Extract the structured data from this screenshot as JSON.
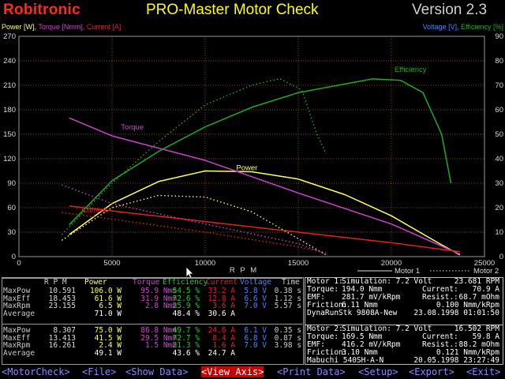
{
  "header": {
    "brand": "Robitronic",
    "title": "PRO-Master Motor Check",
    "version": "Version 2.3"
  },
  "legend_left": {
    "power": "Power [W]",
    "torque": "Torque [Nmm]",
    "current": "Current [A]"
  },
  "legend_right": {
    "voltage": "Voltage [V]",
    "efficiency": "Efficiency [%]"
  },
  "colors": {
    "power": "#ffff66",
    "torque": "#cc44cc",
    "current": "#dd2222",
    "efficiency": "#22aa22",
    "voltage": "#4488ff",
    "grid": "#b06000"
  },
  "chart_data": {
    "type": "line",
    "xlabel": "R P M",
    "xlim": [
      0,
      25000
    ],
    "ylim_left": [
      0,
      270
    ],
    "ylim_right": [
      0,
      90
    ],
    "x_ticks": [
      "0",
      "5000",
      "10000",
      "15000",
      "20000",
      "25000"
    ],
    "y_ticks_left": [
      "0",
      "30",
      "60",
      "90",
      "120",
      "150",
      "180",
      "210",
      "240",
      "270"
    ],
    "y_ticks_right": [
      "0",
      "10",
      "20",
      "30",
      "40",
      "50",
      "60",
      "70",
      "80",
      "90"
    ],
    "curve_labels": {
      "efficiency": "Efficiency",
      "torque": "Torque",
      "power": "Power",
      "current": "Current"
    },
    "legend": {
      "motor1": "Motor 1",
      "motor2": "Motor 2"
    },
    "series": [
      {
        "name": "Power",
        "motor": 1,
        "axis": "left",
        "x": [
          2700,
          5000,
          7500,
          10000,
          12500,
          15000,
          17500,
          20000,
          22500,
          23681
        ],
        "y": [
          27,
          65,
          92,
          105,
          104,
          95,
          76,
          50,
          17,
          2
        ]
      },
      {
        "name": "Torque",
        "motor": 1,
        "axis": "left",
        "x": [
          2700,
          5000,
          10000,
          15000,
          20000,
          23681
        ],
        "y": [
          170,
          148,
          118,
          78,
          40,
          3
        ]
      },
      {
        "name": "Current",
        "motor": 1,
        "axis": "left",
        "x": [
          2700,
          5000,
          10000,
          15000,
          20000,
          23681
        ],
        "y": [
          62,
          56,
          43,
          30,
          17,
          6
        ]
      },
      {
        "name": "Efficiency",
        "motor": 1,
        "axis": "right",
        "x": [
          2700,
          5000,
          7500,
          10000,
          12500,
          15000,
          17500,
          19000,
          20500,
          21700,
          22700,
          23200
        ],
        "y": [
          13,
          31,
          43,
          53,
          61,
          67,
          70.5,
          72.6,
          72,
          67,
          50,
          30
        ]
      },
      {
        "name": "Power",
        "motor": 2,
        "axis": "left",
        "x": [
          2300,
          5000,
          7500,
          10000,
          12500,
          15000,
          16502
        ],
        "y": [
          20,
          60,
          75,
          73,
          55,
          22,
          2
        ]
      },
      {
        "name": "Torque",
        "motor": 2,
        "axis": "left",
        "x": [
          2300,
          5000,
          10000,
          15000,
          16502
        ],
        "y": [
          88,
          65,
          40,
          16,
          3
        ]
      },
      {
        "name": "Current",
        "motor": 2,
        "axis": "left",
        "x": [
          2300,
          5000,
          10000,
          15000,
          16502
        ],
        "y": [
          54,
          46,
          30,
          12,
          5
        ]
      },
      {
        "name": "Efficiency",
        "motor": 2,
        "axis": "right",
        "x": [
          2300,
          5000,
          7500,
          10000,
          12500,
          14000,
          15200,
          16000,
          16502
        ],
        "y": [
          9,
          30,
          47,
          62,
          70,
          72.7,
          68,
          50,
          42
        ]
      }
    ]
  },
  "table": {
    "columns": [
      "R P M",
      "Power",
      "Torque",
      "Efficiency",
      "Current",
      "Voltage",
      "Time"
    ],
    "motor1": [
      [
        "MaxPow",
        "10.591",
        "106.0 W",
        "95.9 Nmm",
        "54.5 %",
        "33.2 A",
        "5.8 V",
        "0.38 s"
      ],
      [
        "MaxEff",
        "18.453",
        "61.6 W",
        "31.9 Nmm",
        "72.6 %",
        "12.8 A",
        "6.6 V",
        "1.12 s"
      ],
      [
        "MaxRpm",
        "23.155",
        "6.5 W",
        "2.8 Nmm",
        "25.9 %",
        "3.6 A",
        "7.0 V",
        "5.57 s"
      ],
      [
        "Average",
        "",
        "71.0 W",
        "",
        "48.4 %",
        "30.6 A",
        "",
        ""
      ]
    ],
    "motor2": [
      [
        "MaxPow",
        "8.307",
        "75.0 W",
        "86.8 Nmm",
        "49.7 %",
        "24.6 A",
        "6.1 V",
        "0.35 s"
      ],
      [
        "MaxEff",
        "13.413",
        "41.5 W",
        "29.5 Nmm",
        "72.7 %",
        "8.4 A",
        "6.8 V",
        "0.87 s"
      ],
      [
        "MaxRpm",
        "16.261",
        "2.4 W",
        "1.5 Nmm",
        "21.3 %",
        "1.6 A",
        "7.0 V",
        "3.98 s"
      ],
      [
        "Average",
        "",
        "49.1 W",
        "",
        "43.6 %",
        "24.7 A",
        "",
        ""
      ]
    ]
  },
  "motor1": {
    "title": "Motor 1:",
    "simulation": "Simulation: 7.2 Volt",
    "rpm": "23.681 RPM",
    "torque_lbl": "Torque:",
    "torque": "194.0 Nmm",
    "current_lbl": "Current:",
    "current": "70.9 A",
    "emf_lbl": "EMF:",
    "emf": "281.7 mV/kRpm",
    "resist_lbl": "Resist.:",
    "resist": "68.7 mOhm",
    "friction_lbl": "Friction:",
    "friction": "6.11 Nmm",
    "friction2": "0.100 Nmm/kRpm",
    "model": "DynaRunStk 9808A-New",
    "date": "23.08.1998 01:01:50"
  },
  "motor2": {
    "title": "Motor 2:",
    "simulation": "Simulation: 7.2 Volt",
    "rpm": "16.502 RPM",
    "torque_lbl": "Torque:",
    "torque": "169.5 Nmm",
    "current_lbl": "Current:",
    "current": "59.8 A",
    "emf_lbl": "EMF:",
    "emf": "416.2 mV/kRpm",
    "resist_lbl": "Resist.:",
    "resist": "88.2 mOhm",
    "friction_lbl": "Friction:",
    "friction": "3.10 Nmm",
    "friction2": "0.121 Nmm/kRpm",
    "model": "Mabuchi 540SH-A-N",
    "date": "20.05.1998 23:27:49"
  },
  "menu": [
    "<MotorCheck>",
    "<File>",
    "<Show Data>",
    "<View Axis>",
    "<Print Data>",
    "<Setup>",
    "<Export>",
    "<Exit>"
  ],
  "menu_active": 3
}
